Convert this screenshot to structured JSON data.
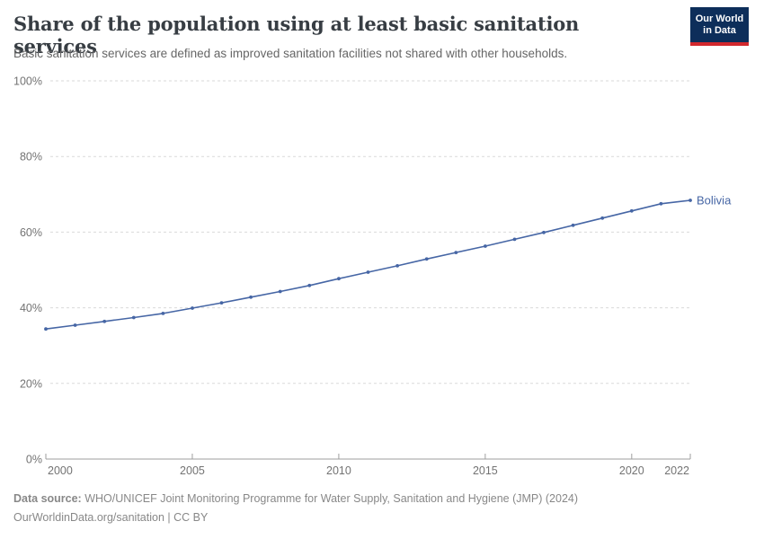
{
  "header": {
    "title": "Share of the population using at least basic sanitation services",
    "subtitle": "Basic sanitation services are defined as improved sanitation facilities not shared with other households."
  },
  "logo": {
    "line1": "Our World",
    "line2": "in Data",
    "bg_color": "#0d2e5a",
    "accent_color": "#d2282d"
  },
  "chart_data": {
    "type": "line",
    "title": "Share of the population using at least basic sanitation services",
    "x": [
      2000,
      2001,
      2002,
      2003,
      2004,
      2005,
      2006,
      2007,
      2008,
      2009,
      2010,
      2011,
      2012,
      2013,
      2014,
      2015,
      2016,
      2017,
      2018,
      2019,
      2020,
      2021,
      2022
    ],
    "series": [
      {
        "name": "Bolivia",
        "color": "#4666a5",
        "values": [
          34.4,
          35.4,
          36.4,
          37.4,
          38.5,
          39.9,
          41.3,
          42.8,
          44.3,
          45.9,
          47.7,
          49.4,
          51.1,
          52.9,
          54.6,
          56.3,
          58.1,
          59.9,
          61.8,
          63.7,
          65.6,
          67.5,
          68.4
        ]
      }
    ],
    "xlabel": "",
    "ylabel": "",
    "xlim": [
      2000,
      2022
    ],
    "ylim": [
      0,
      100
    ],
    "xticks": [
      2000,
      2005,
      2010,
      2015,
      2020,
      2022
    ],
    "yticks": [
      {
        "value": 0,
        "label": "0%"
      },
      {
        "value": 20,
        "label": "20%"
      },
      {
        "value": 40,
        "label": "40%"
      },
      {
        "value": 60,
        "label": "60%"
      },
      {
        "value": 80,
        "label": "80%"
      },
      {
        "value": 100,
        "label": "100%"
      }
    ],
    "grid": "horizontal-dashed",
    "legend": "entity-label-at-line-end",
    "colors": {
      "gridline": "#dadada",
      "axis_line": "#9e9e9e",
      "tick_label": "#737373"
    }
  },
  "footer": {
    "source_label": "Data source:",
    "source_text": " WHO/UNICEF Joint Monitoring Programme for Water Supply, Sanitation and Hygiene (JMP) (2024)",
    "note": "OurWorldinData.org/sanitation | CC BY"
  }
}
